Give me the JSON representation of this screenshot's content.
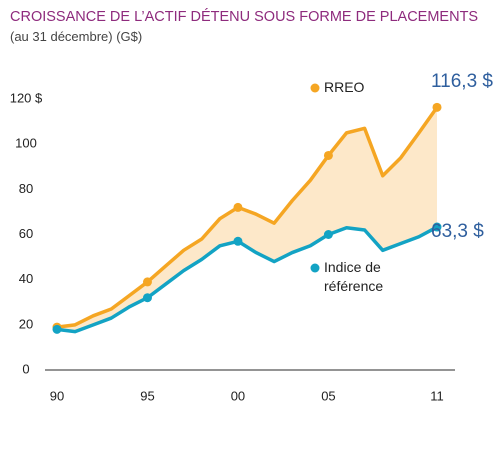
{
  "chart_data": {
    "type": "line",
    "title": "CROISSANCE DE L’ACTIF DÉTENU SOUS FORME DE PLACEMENTS",
    "subtitle": "(au 31 décembre) (G$)",
    "categories": [
      "90",
      null,
      null,
      null,
      null,
      "95",
      null,
      null,
      null,
      null,
      "00",
      null,
      null,
      null,
      null,
      "05",
      null,
      null,
      null,
      null,
      null,
      "11"
    ],
    "series": [
      {
        "name": "RREO",
        "color": "#f5a623",
        "values": [
          19,
          20,
          24,
          27,
          33,
          39,
          46,
          53,
          58,
          67,
          72,
          69,
          65,
          75,
          84,
          95,
          105,
          107,
          86,
          94,
          105,
          116.3
        ],
        "value_labels": [
          null,
          null,
          null,
          null,
          null,
          null,
          null,
          null,
          null,
          null,
          null,
          null,
          null,
          null,
          null,
          null,
          null,
          null,
          null,
          null,
          null,
          "116,3 $"
        ]
      },
      {
        "name": "Indice de référence",
        "color": "#13a3c4",
        "values": [
          18,
          17,
          20,
          23,
          28,
          32,
          38,
          44,
          49,
          55,
          57,
          52,
          48,
          52,
          55,
          60,
          63,
          62,
          53,
          56,
          59,
          63.3
        ],
        "value_labels": [
          null,
          null,
          null,
          null,
          null,
          null,
          null,
          null,
          null,
          null,
          null,
          null,
          null,
          null,
          null,
          null,
          null,
          null,
          null,
          null,
          null,
          "63,3 $"
        ]
      }
    ],
    "band_color": "#fde8c9",
    "ylim": [
      0,
      120
    ],
    "yticks": [
      0,
      20,
      40,
      60,
      80,
      100,
      {
        "value": 120,
        "label": "120 $"
      }
    ],
    "grid": false
  }
}
